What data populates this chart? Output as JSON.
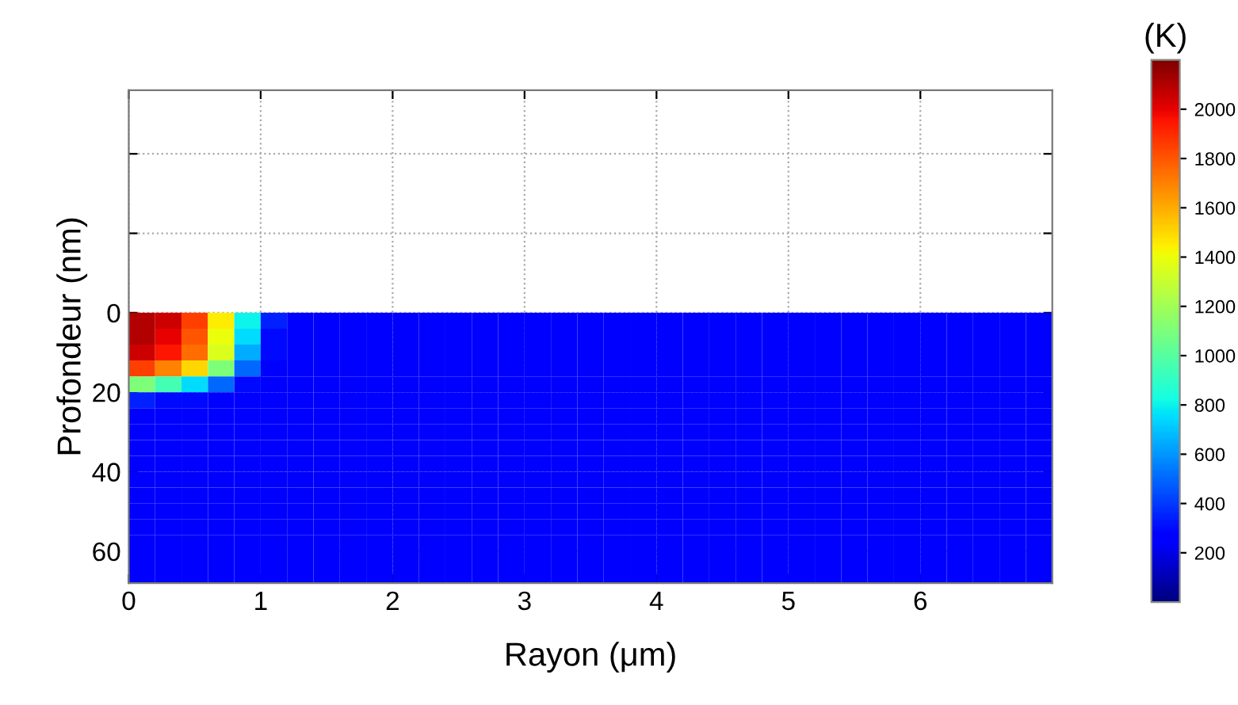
{
  "chart_data": {
    "type": "heatmap",
    "xlabel": "Rayon (μm)",
    "ylabel": "Profondeur (nm)",
    "clabel": "(K)",
    "x": [
      0.1,
      0.3,
      0.5,
      0.7,
      0.9,
      1.1,
      1.3,
      1.5,
      1.7,
      1.9,
      2.1,
      2.3,
      2.5,
      2.7,
      2.9,
      3.1,
      3.3,
      3.5,
      3.7,
      3.9,
      4.1,
      4.3,
      4.5,
      4.7,
      4.9,
      5.1,
      5.3,
      5.5,
      5.7,
      5.9,
      6.1,
      6.3,
      6.5,
      6.7,
      6.9
    ],
    "y": [
      2,
      6,
      10,
      14,
      18,
      22,
      26,
      30,
      34,
      38,
      42,
      46,
      50,
      54,
      58,
      62,
      66
    ],
    "xlim": [
      0,
      7
    ],
    "ylim": [
      68,
      -56
    ],
    "xticks": [
      0,
      1,
      2,
      3,
      4,
      5,
      6
    ],
    "yticks": [
      {
        "value": -40,
        "label": null
      },
      {
        "value": -20,
        "label": null
      },
      0,
      20,
      40,
      60
    ],
    "clim": [
      0,
      2200
    ],
    "cticks": [
      200,
      400,
      600,
      800,
      1000,
      1200,
      1400,
      1600,
      1800,
      2000
    ],
    "grid": true,
    "cells": [
      [
        2100,
        2050,
        1850,
        1450,
        800,
        350,
        250,
        250,
        250,
        250,
        250,
        250,
        250,
        250,
        250,
        250,
        250,
        250,
        250,
        250,
        250,
        250,
        250,
        250,
        250,
        250,
        250,
        250,
        250,
        250,
        250,
        250,
        250,
        250,
        250
      ],
      [
        2100,
        2000,
        1800,
        1400,
        750,
        300,
        250,
        250,
        250,
        250,
        250,
        250,
        250,
        250,
        250,
        250,
        250,
        250,
        250,
        250,
        250,
        250,
        250,
        250,
        250,
        250,
        250,
        250,
        250,
        250,
        250,
        250,
        250,
        250,
        250
      ],
      [
        2050,
        1950,
        1750,
        1350,
        650,
        300,
        250,
        250,
        250,
        250,
        250,
        250,
        250,
        250,
        250,
        250,
        250,
        250,
        250,
        250,
        250,
        250,
        250,
        250,
        250,
        250,
        250,
        250,
        250,
        250,
        250,
        250,
        250,
        250,
        250
      ],
      [
        1850,
        1700,
        1500,
        1100,
        500,
        250,
        250,
        250,
        250,
        250,
        250,
        250,
        250,
        250,
        250,
        250,
        250,
        250,
        250,
        250,
        250,
        250,
        250,
        250,
        250,
        250,
        250,
        250,
        250,
        250,
        250,
        250,
        250,
        250,
        250
      ],
      [
        1100,
        950,
        750,
        500,
        300,
        250,
        250,
        250,
        250,
        250,
        250,
        250,
        250,
        250,
        250,
        250,
        250,
        250,
        250,
        250,
        250,
        250,
        250,
        250,
        250,
        250,
        250,
        250,
        250,
        250,
        250,
        250,
        250,
        250,
        250
      ],
      [
        350,
        300,
        300,
        250,
        250,
        250,
        250,
        250,
        250,
        250,
        250,
        250,
        250,
        250,
        250,
        250,
        250,
        250,
        250,
        250,
        250,
        250,
        250,
        250,
        250,
        250,
        250,
        250,
        250,
        250,
        250,
        250,
        250,
        250,
        250
      ],
      [
        250,
        250,
        250,
        250,
        250,
        250,
        250,
        250,
        250,
        250,
        250,
        250,
        250,
        250,
        250,
        250,
        250,
        250,
        250,
        250,
        250,
        250,
        250,
        250,
        250,
        250,
        250,
        250,
        250,
        250,
        250,
        250,
        250,
        250,
        250
      ],
      [
        250,
        250,
        250,
        250,
        250,
        250,
        250,
        250,
        250,
        250,
        250,
        250,
        250,
        250,
        250,
        250,
        250,
        250,
        250,
        250,
        250,
        250,
        250,
        250,
        250,
        250,
        250,
        250,
        250,
        250,
        250,
        250,
        250,
        250,
        250
      ],
      [
        250,
        250,
        250,
        250,
        250,
        250,
        250,
        250,
        250,
        250,
        250,
        250,
        250,
        250,
        250,
        250,
        250,
        250,
        250,
        250,
        250,
        250,
        250,
        250,
        250,
        250,
        250,
        250,
        250,
        250,
        250,
        250,
        250,
        250,
        250
      ],
      [
        250,
        250,
        250,
        250,
        250,
        250,
        250,
        250,
        250,
        250,
        250,
        250,
        250,
        250,
        250,
        250,
        250,
        250,
        250,
        250,
        250,
        250,
        250,
        250,
        250,
        250,
        250,
        250,
        250,
        250,
        250,
        250,
        250,
        250,
        250
      ],
      [
        250,
        250,
        250,
        250,
        250,
        250,
        250,
        250,
        250,
        250,
        250,
        250,
        250,
        250,
        250,
        250,
        250,
        250,
        250,
        250,
        250,
        250,
        250,
        250,
        250,
        250,
        250,
        250,
        250,
        250,
        250,
        250,
        250,
        250,
        250
      ],
      [
        250,
        250,
        250,
        250,
        250,
        250,
        250,
        250,
        250,
        250,
        250,
        250,
        250,
        250,
        250,
        250,
        250,
        250,
        250,
        250,
        250,
        250,
        250,
        250,
        250,
        250,
        250,
        250,
        250,
        250,
        250,
        250,
        250,
        250,
        250
      ],
      [
        250,
        250,
        250,
        250,
        250,
        250,
        250,
        250,
        250,
        250,
        250,
        250,
        250,
        250,
        250,
        250,
        250,
        250,
        250,
        250,
        250,
        250,
        250,
        250,
        250,
        250,
        250,
        250,
        250,
        250,
        250,
        250,
        250,
        250,
        250
      ],
      [
        250,
        250,
        250,
        250,
        250,
        250,
        250,
        250,
        250,
        250,
        250,
        250,
        250,
        250,
        250,
        250,
        250,
        250,
        250,
        250,
        250,
        250,
        250,
        250,
        250,
        250,
        250,
        250,
        250,
        250,
        250,
        250,
        250,
        250,
        250
      ],
      [
        250,
        250,
        250,
        250,
        250,
        250,
        250,
        250,
        250,
        250,
        250,
        250,
        250,
        250,
        250,
        250,
        250,
        250,
        250,
        250,
        250,
        250,
        250,
        250,
        250,
        250,
        250,
        250,
        250,
        250,
        250,
        250,
        250,
        250,
        250
      ],
      [
        250,
        250,
        250,
        250,
        250,
        250,
        250,
        250,
        250,
        250,
        250,
        250,
        250,
        250,
        250,
        250,
        250,
        250,
        250,
        250,
        250,
        250,
        250,
        250,
        250,
        250,
        250,
        250,
        250,
        250,
        250,
        250,
        250,
        250,
        250
      ],
      [
        250,
        250,
        250,
        250,
        250,
        250,
        250,
        250,
        250,
        250,
        250,
        250,
        250,
        250,
        250,
        250,
        250,
        250,
        250,
        250,
        250,
        250,
        250,
        250,
        250,
        250,
        250,
        250,
        250,
        250,
        250,
        250,
        250,
        250,
        250
      ]
    ]
  }
}
